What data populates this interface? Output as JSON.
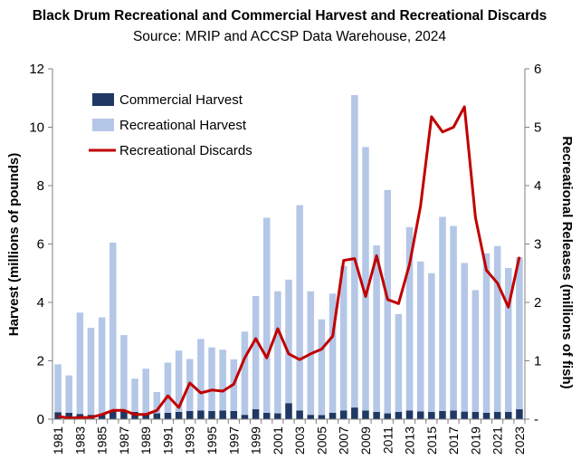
{
  "chart_data": {
    "type": "bar",
    "title": "Black Drum Recreational and Commercial Harvest and Recreational Discards",
    "subtitle": "Source: MRIP and ACCSP Data Warehouse, 2024",
    "ylabel": "Harvest (millions of pounds)",
    "y2label": "Recreational Releases (millions of fish)",
    "ylim": [
      0,
      12
    ],
    "y2lim": [
      0,
      6
    ],
    "yticks": [
      "0",
      "2",
      "4",
      "6",
      "8",
      "10",
      "12"
    ],
    "y2ticks": [
      "-",
      "1",
      "2",
      "3",
      "4",
      "5",
      "6"
    ],
    "stacked": true,
    "grid": false,
    "legend_position": "top-left",
    "categories": [
      "1981",
      "1982",
      "1983",
      "1984",
      "1985",
      "1986",
      "1987",
      "1988",
      "1989",
      "1990",
      "1991",
      "1992",
      "1993",
      "1994",
      "1995",
      "1996",
      "1997",
      "1998",
      "1999",
      "2000",
      "2001",
      "2002",
      "2003",
      "2004",
      "2005",
      "2006",
      "2007",
      "2008",
      "2009",
      "2010",
      "2011",
      "2012",
      "2013",
      "2014",
      "2015",
      "2016",
      "2017",
      "2018",
      "2019",
      "2020",
      "2021",
      "2022",
      "2023"
    ],
    "series": [
      {
        "name": "Commercial Harvest",
        "type": "bar",
        "axis": "left",
        "color": "#1f3864",
        "values": [
          0.24,
          0.22,
          0.18,
          0.15,
          0.17,
          0.28,
          0.3,
          0.25,
          0.18,
          0.2,
          0.22,
          0.25,
          0.28,
          0.3,
          0.28,
          0.3,
          0.28,
          0.15,
          0.34,
          0.22,
          0.2,
          0.55,
          0.3,
          0.15,
          0.14,
          0.22,
          0.3,
          0.4,
          0.3,
          0.25,
          0.2,
          0.25,
          0.3,
          0.27,
          0.25,
          0.28,
          0.3,
          0.26,
          0.25,
          0.22,
          0.25,
          0.25,
          0.34
        ]
      },
      {
        "name": "Recreational Harvest",
        "type": "bar",
        "axis": "left",
        "color": "#b4c7e7",
        "values": [
          1.64,
          1.28,
          3.47,
          2.98,
          3.32,
          5.77,
          2.58,
          1.14,
          1.55,
          0.73,
          1.72,
          2.1,
          1.78,
          2.45,
          2.18,
          2.08,
          1.77,
          2.85,
          3.88,
          6.68,
          4.18,
          4.23,
          7.03,
          4.23,
          3.28,
          4.08,
          4.95,
          10.7,
          9.02,
          5.7,
          7.65,
          3.35,
          6.28,
          5.13,
          4.75,
          6.65,
          6.32,
          5.09,
          4.17,
          5.46,
          5.68,
          4.93,
          5.2
        ]
      },
      {
        "name": "Recreational Discards",
        "type": "line",
        "axis": "right",
        "color": "#c00000",
        "values": [
          0.05,
          0.02,
          0.03,
          0.03,
          0.08,
          0.15,
          0.15,
          0.08,
          0.08,
          0.15,
          0.4,
          0.2,
          0.62,
          0.45,
          0.5,
          0.48,
          0.6,
          1.05,
          1.38,
          1.05,
          1.55,
          1.12,
          1.02,
          1.12,
          1.2,
          1.42,
          2.72,
          2.75,
          2.1,
          2.8,
          2.05,
          1.98,
          2.65,
          3.65,
          5.18,
          4.92,
          5.0,
          5.35,
          3.45,
          2.55,
          2.33,
          1.92,
          2.78
        ]
      }
    ]
  }
}
